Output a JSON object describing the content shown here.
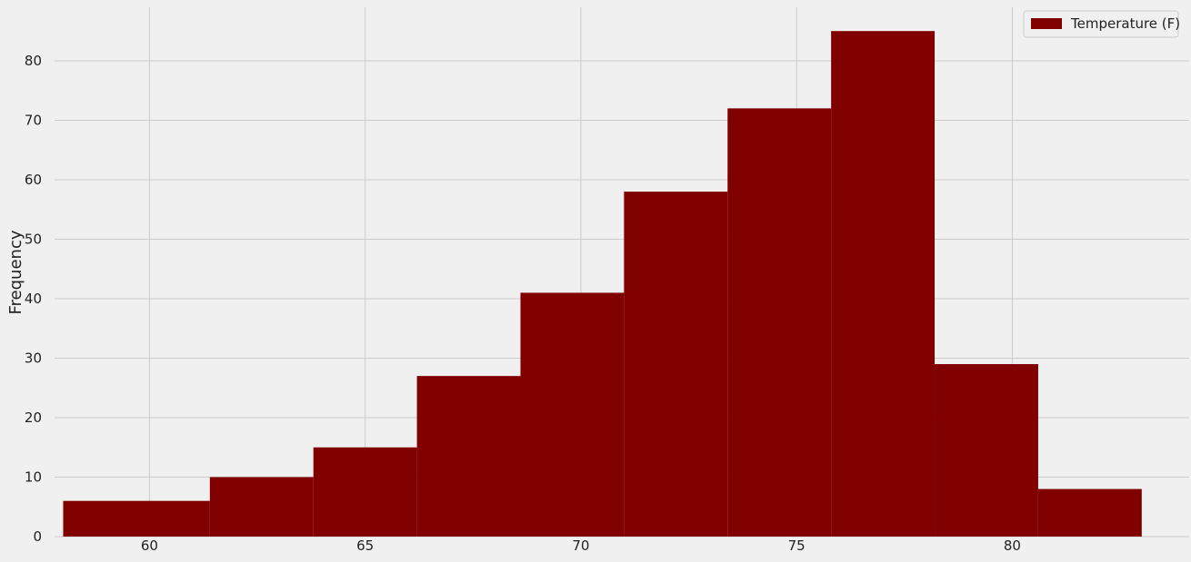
{
  "chart_data": {
    "type": "bar",
    "subtype": "histogram",
    "bins": [
      {
        "x0": 58.0,
        "x1": 61.4,
        "value": 6
      },
      {
        "x0": 61.4,
        "x1": 63.8,
        "value": 10
      },
      {
        "x0": 63.8,
        "x1": 66.2,
        "value": 15
      },
      {
        "x0": 66.2,
        "x1": 68.6,
        "value": 27
      },
      {
        "x0": 68.6,
        "x1": 71.0,
        "value": 41
      },
      {
        "x0": 71.0,
        "x1": 73.4,
        "value": 58
      },
      {
        "x0": 73.4,
        "x1": 75.8,
        "value": 72
      },
      {
        "x0": 75.8,
        "x1": 78.2,
        "value": 85
      },
      {
        "x0": 78.2,
        "x1": 80.6,
        "value": 29
      },
      {
        "x0": 80.6,
        "x1": 83.0,
        "value": 8
      }
    ],
    "series": [
      {
        "name": "Temperature (F)",
        "color": "#800000"
      }
    ],
    "xlabel": "",
    "ylabel": "Frequency",
    "xlim": [
      57.8,
      84.1
    ],
    "ylim": [
      0,
      89
    ],
    "xticks": [
      60,
      65,
      70,
      75,
      80
    ],
    "yticks": [
      0,
      10,
      20,
      30,
      40,
      50,
      60,
      70,
      80
    ],
    "grid": true,
    "legend_position": "top-right",
    "background_color": "#f0f0f0",
    "grid_color": "#cbcbcb"
  }
}
